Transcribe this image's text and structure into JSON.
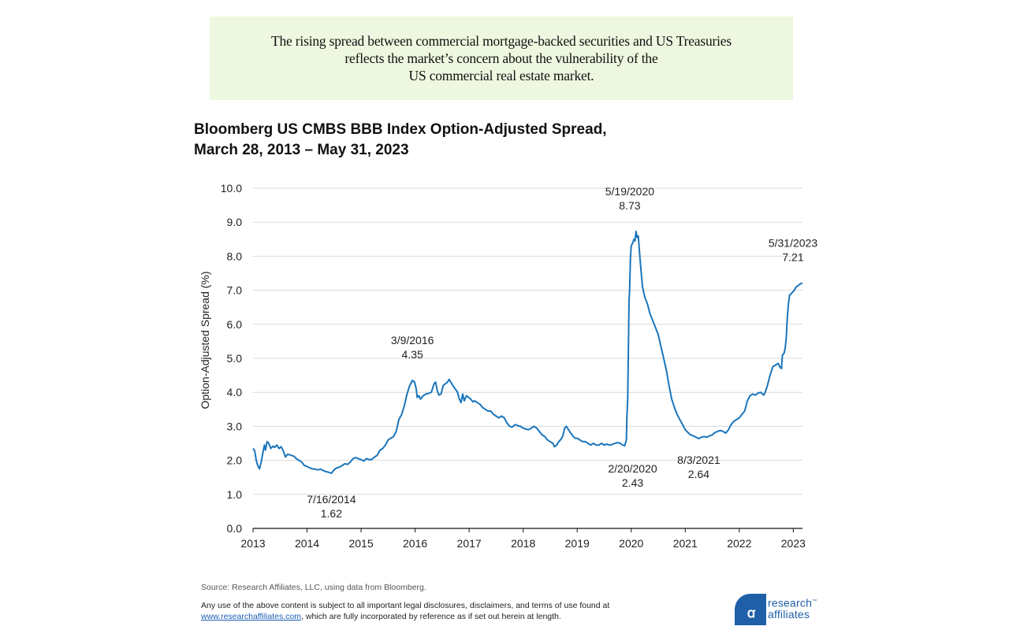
{
  "banner": {
    "lines": [
      "The rising spread between commercial mortgage-backed securities and US Treasuries",
      "reflects the market’s concern about the vulnerability of the",
      "US commercial real estate market."
    ]
  },
  "footer": {
    "source": "Source: Research Affiliates, LLC, using data from Bloomberg.",
    "disclaimer_pre": "Any use of the above content is subject to all important legal disclosures, disclaimers, and terms of use found at",
    "disclaimer_link": "www.researchaffiliates.com",
    "disclaimer_post": ", which are fully incorporated by reference as if set out herein at length."
  },
  "logo": {
    "line1": "research",
    "line2": "affiliates",
    "trademark": "™",
    "color": "#1f5fa8"
  },
  "chart_data": {
    "type": "line",
    "title": "Bloomberg US CMBS BBB Index Option-Adjusted Spread,",
    "subtitle": "March 28, 2013 – May 31, 2023",
    "xlabel": "",
    "ylabel": "Option-Adjusted  Spread (%)",
    "ylim": [
      0,
      10
    ],
    "yticks": [
      "0.0",
      "1.0",
      "2.0",
      "3.0",
      "4.0",
      "5.0",
      "6.0",
      "7.0",
      "8.0",
      "9.0",
      "10.0"
    ],
    "xlim": [
      2013.0,
      2023.17
    ],
    "xticks": [
      "2013",
      "2014",
      "2015",
      "2016",
      "2017",
      "2018",
      "2019",
      "2020",
      "2021",
      "2022",
      "2023"
    ],
    "grid": true,
    "line_color": "#1a75bc",
    "series": [
      {
        "name": "Bloomberg US CMBS BBB Index OAS",
        "points": [
          [
            2013.0,
            2.35
          ],
          [
            2013.03,
            2.28
          ],
          [
            2013.06,
            2.0
          ],
          [
            2013.09,
            1.83
          ],
          [
            2013.12,
            1.75
          ],
          [
            2013.15,
            1.95
          ],
          [
            2013.18,
            2.2
          ],
          [
            2013.21,
            2.45
          ],
          [
            2013.23,
            2.3
          ],
          [
            2013.26,
            2.55
          ],
          [
            2013.29,
            2.5
          ],
          [
            2013.33,
            2.35
          ],
          [
            2013.37,
            2.42
          ],
          [
            2013.4,
            2.38
          ],
          [
            2013.44,
            2.45
          ],
          [
            2013.48,
            2.35
          ],
          [
            2013.52,
            2.4
          ],
          [
            2013.56,
            2.28
          ],
          [
            2013.6,
            2.1
          ],
          [
            2013.64,
            2.18
          ],
          [
            2013.7,
            2.15
          ],
          [
            2013.76,
            2.12
          ],
          [
            2013.8,
            2.05
          ],
          [
            2013.85,
            2.0
          ],
          [
            2013.9,
            1.95
          ],
          [
            2013.95,
            1.85
          ],
          [
            2014.0,
            1.82
          ],
          [
            2014.05,
            1.78
          ],
          [
            2014.1,
            1.75
          ],
          [
            2014.15,
            1.74
          ],
          [
            2014.2,
            1.72
          ],
          [
            2014.25,
            1.74
          ],
          [
            2014.3,
            1.7
          ],
          [
            2014.35,
            1.67
          ],
          [
            2014.4,
            1.65
          ],
          [
            2014.45,
            1.62
          ],
          [
            2014.5,
            1.72
          ],
          [
            2014.55,
            1.78
          ],
          [
            2014.6,
            1.8
          ],
          [
            2014.65,
            1.85
          ],
          [
            2014.7,
            1.9
          ],
          [
            2014.75,
            1.88
          ],
          [
            2014.8,
            1.95
          ],
          [
            2014.85,
            2.05
          ],
          [
            2014.9,
            2.08
          ],
          [
            2014.95,
            2.05
          ],
          [
            2015.0,
            2.02
          ],
          [
            2015.05,
            1.98
          ],
          [
            2015.1,
            2.05
          ],
          [
            2015.15,
            2.02
          ],
          [
            2015.2,
            2.03
          ],
          [
            2015.25,
            2.1
          ],
          [
            2015.3,
            2.15
          ],
          [
            2015.35,
            2.3
          ],
          [
            2015.4,
            2.35
          ],
          [
            2015.45,
            2.45
          ],
          [
            2015.5,
            2.6
          ],
          [
            2015.55,
            2.65
          ],
          [
            2015.6,
            2.7
          ],
          [
            2015.65,
            2.85
          ],
          [
            2015.7,
            3.2
          ],
          [
            2015.75,
            3.35
          ],
          [
            2015.8,
            3.6
          ],
          [
            2015.85,
            3.95
          ],
          [
            2015.9,
            4.2
          ],
          [
            2015.95,
            4.35
          ],
          [
            2015.99,
            4.3
          ],
          [
            2016.02,
            4.1
          ],
          [
            2016.04,
            3.85
          ],
          [
            2016.07,
            3.9
          ],
          [
            2016.1,
            3.8
          ],
          [
            2016.15,
            3.9
          ],
          [
            2016.2,
            3.95
          ],
          [
            2016.25,
            3.97
          ],
          [
            2016.3,
            4.0
          ],
          [
            2016.35,
            4.25
          ],
          [
            2016.38,
            4.3
          ],
          [
            2016.41,
            4.05
          ],
          [
            2016.44,
            3.92
          ],
          [
            2016.48,
            3.95
          ],
          [
            2016.52,
            4.2
          ],
          [
            2016.56,
            4.25
          ],
          [
            2016.6,
            4.3
          ],
          [
            2016.63,
            4.38
          ],
          [
            2016.66,
            4.3
          ],
          [
            2016.7,
            4.2
          ],
          [
            2016.74,
            4.1
          ],
          [
            2016.78,
            4.02
          ],
          [
            2016.82,
            3.8
          ],
          [
            2016.85,
            3.7
          ],
          [
            2016.88,
            3.95
          ],
          [
            2016.91,
            3.75
          ],
          [
            2016.95,
            3.9
          ],
          [
            2016.99,
            3.85
          ],
          [
            2017.03,
            3.8
          ],
          [
            2017.07,
            3.72
          ],
          [
            2017.1,
            3.75
          ],
          [
            2017.15,
            3.7
          ],
          [
            2017.2,
            3.65
          ],
          [
            2017.25,
            3.55
          ],
          [
            2017.3,
            3.5
          ],
          [
            2017.35,
            3.45
          ],
          [
            2017.4,
            3.45
          ],
          [
            2017.45,
            3.35
          ],
          [
            2017.5,
            3.3
          ],
          [
            2017.55,
            3.25
          ],
          [
            2017.6,
            3.3
          ],
          [
            2017.65,
            3.25
          ],
          [
            2017.7,
            3.1
          ],
          [
            2017.75,
            3.0
          ],
          [
            2017.8,
            2.98
          ],
          [
            2017.85,
            3.05
          ],
          [
            2017.9,
            3.02
          ],
          [
            2017.95,
            3.0
          ],
          [
            2018.0,
            2.95
          ],
          [
            2018.05,
            2.92
          ],
          [
            2018.1,
            2.9
          ],
          [
            2018.15,
            2.95
          ],
          [
            2018.2,
            3.0
          ],
          [
            2018.25,
            2.95
          ],
          [
            2018.3,
            2.85
          ],
          [
            2018.35,
            2.75
          ],
          [
            2018.4,
            2.7
          ],
          [
            2018.45,
            2.6
          ],
          [
            2018.5,
            2.55
          ],
          [
            2018.55,
            2.5
          ],
          [
            2018.58,
            2.4
          ],
          [
            2018.62,
            2.45
          ],
          [
            2018.66,
            2.55
          ],
          [
            2018.7,
            2.62
          ],
          [
            2018.73,
            2.7
          ],
          [
            2018.77,
            2.95
          ],
          [
            2018.8,
            3.0
          ],
          [
            2018.84,
            2.9
          ],
          [
            2018.88,
            2.8
          ],
          [
            2018.92,
            2.72
          ],
          [
            2018.96,
            2.65
          ],
          [
            2019.0,
            2.65
          ],
          [
            2019.05,
            2.6
          ],
          [
            2019.1,
            2.55
          ],
          [
            2019.15,
            2.55
          ],
          [
            2019.2,
            2.5
          ],
          [
            2019.25,
            2.45
          ],
          [
            2019.3,
            2.5
          ],
          [
            2019.35,
            2.45
          ],
          [
            2019.4,
            2.45
          ],
          [
            2019.45,
            2.5
          ],
          [
            2019.5,
            2.45
          ],
          [
            2019.55,
            2.48
          ],
          [
            2019.6,
            2.45
          ],
          [
            2019.65,
            2.47
          ],
          [
            2019.7,
            2.5
          ],
          [
            2019.75,
            2.52
          ],
          [
            2019.8,
            2.5
          ],
          [
            2019.84,
            2.45
          ],
          [
            2019.88,
            2.43
          ],
          [
            2019.91,
            2.6
          ],
          [
            2019.92,
            3.3
          ],
          [
            2019.935,
            3.8
          ],
          [
            2019.95,
            5.5
          ],
          [
            2019.96,
            6.7
          ],
          [
            2019.97,
            7.0
          ],
          [
            2019.985,
            7.9
          ],
          [
            2020.0,
            8.3
          ],
          [
            2020.03,
            8.4
          ],
          [
            2020.05,
            8.5
          ],
          [
            2020.07,
            8.45
          ],
          [
            2020.09,
            8.73
          ],
          [
            2020.11,
            8.55
          ],
          [
            2020.13,
            8.6
          ],
          [
            2020.15,
            8.2
          ],
          [
            2020.18,
            7.6
          ],
          [
            2020.21,
            7.1
          ],
          [
            2020.25,
            6.8
          ],
          [
            2020.3,
            6.6
          ],
          [
            2020.35,
            6.3
          ],
          [
            2020.4,
            6.1
          ],
          [
            2020.45,
            5.9
          ],
          [
            2020.5,
            5.7
          ],
          [
            2020.55,
            5.35
          ],
          [
            2020.6,
            5.0
          ],
          [
            2020.65,
            4.65
          ],
          [
            2020.7,
            4.2
          ],
          [
            2020.75,
            3.8
          ],
          [
            2020.8,
            3.55
          ],
          [
            2020.85,
            3.35
          ],
          [
            2020.9,
            3.2
          ],
          [
            2020.95,
            3.05
          ],
          [
            2021.0,
            2.9
          ],
          [
            2021.05,
            2.82
          ],
          [
            2021.1,
            2.75
          ],
          [
            2021.15,
            2.72
          ],
          [
            2021.2,
            2.68
          ],
          [
            2021.25,
            2.64
          ],
          [
            2021.3,
            2.68
          ],
          [
            2021.35,
            2.7
          ],
          [
            2021.4,
            2.68
          ],
          [
            2021.45,
            2.72
          ],
          [
            2021.5,
            2.75
          ],
          [
            2021.55,
            2.82
          ],
          [
            2021.6,
            2.85
          ],
          [
            2021.65,
            2.88
          ],
          [
            2021.7,
            2.85
          ],
          [
            2021.75,
            2.8
          ],
          [
            2021.8,
            2.9
          ],
          [
            2021.85,
            3.05
          ],
          [
            2021.9,
            3.15
          ],
          [
            2021.95,
            3.2
          ],
          [
            2022.0,
            3.25
          ],
          [
            2022.05,
            3.35
          ],
          [
            2022.1,
            3.45
          ],
          [
            2022.15,
            3.75
          ],
          [
            2022.2,
            3.9
          ],
          [
            2022.25,
            3.95
          ],
          [
            2022.3,
            3.92
          ],
          [
            2022.35,
            3.98
          ],
          [
            2022.4,
            4.0
          ],
          [
            2022.45,
            3.92
          ],
          [
            2022.48,
            4.0
          ],
          [
            2022.52,
            4.2
          ],
          [
            2022.57,
            4.5
          ],
          [
            2022.62,
            4.75
          ],
          [
            2022.67,
            4.8
          ],
          [
            2022.72,
            4.85
          ],
          [
            2022.75,
            4.75
          ],
          [
            2022.78,
            4.7
          ],
          [
            2022.8,
            5.1
          ],
          [
            2022.83,
            5.15
          ],
          [
            2022.85,
            5.3
          ],
          [
            2022.87,
            5.6
          ],
          [
            2022.89,
            6.2
          ],
          [
            2022.91,
            6.6
          ],
          [
            2022.93,
            6.85
          ],
          [
            2022.96,
            6.9
          ],
          [
            2022.99,
            6.95
          ],
          [
            2023.02,
            7.0
          ],
          [
            2023.05,
            7.1
          ],
          [
            2023.08,
            7.12
          ],
          [
            2023.12,
            7.18
          ],
          [
            2023.17,
            7.21
          ]
        ]
      }
    ],
    "annotations": [
      {
        "date": "7/16/2014",
        "value": "1.62",
        "x": 2014.45,
        "y": 1.62,
        "placement": "below"
      },
      {
        "date": "3/9/2016",
        "value": "4.35",
        "x": 2015.95,
        "y": 4.35,
        "placement": "above"
      },
      {
        "date": "2/20/2020",
        "value": "2.43",
        "x": 2019.88,
        "y": 2.43,
        "placement": "below"
      },
      {
        "date": "5/19/2020",
        "value": "8.73",
        "x": 2020.09,
        "y": 8.73,
        "placement": "above"
      },
      {
        "date": "8/3/2021",
        "value": "2.64",
        "x": 2021.25,
        "y": 2.64,
        "placement": "below"
      },
      {
        "date": "5/31/2023",
        "value": "7.21",
        "x": 2023.17,
        "y": 7.21,
        "placement": "above"
      }
    ]
  }
}
